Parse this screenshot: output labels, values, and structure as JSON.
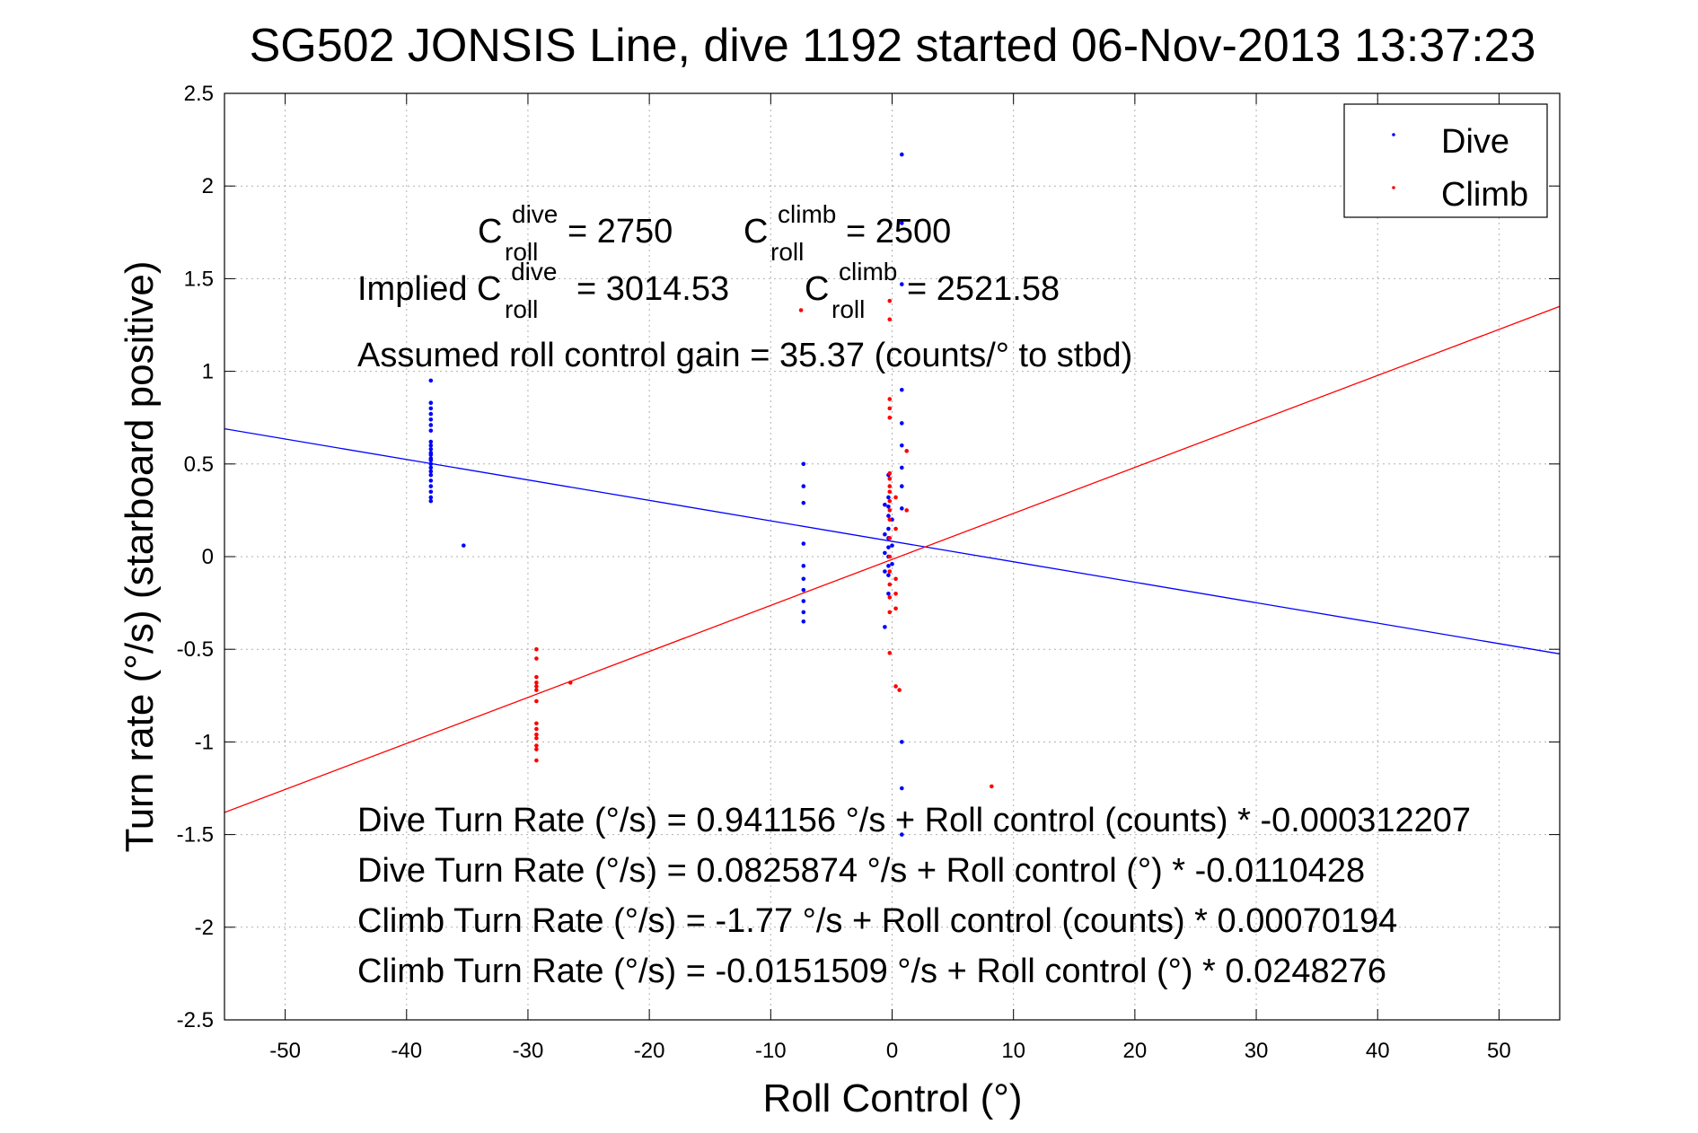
{
  "chart_data": {
    "type": "scatter",
    "title": "SG502 JONSIS Line, dive 1192 started 06-Nov-2013 13:37:23",
    "xlabel": "Roll Control (°)",
    "ylabel": "Turn rate (°/s) (starboard positive)",
    "xlim": [
      -55,
      55
    ],
    "ylim": [
      -2.5,
      2.5
    ],
    "xticks": [
      -50,
      -40,
      -30,
      -20,
      -10,
      0,
      10,
      20,
      30,
      40,
      50
    ],
    "yticks": [
      -2.5,
      -2,
      -1.5,
      -1,
      -0.5,
      0,
      0.5,
      1,
      1.5,
      2,
      2.5
    ],
    "xtick_labels": [
      "-50",
      "-40",
      "-30",
      "-20",
      "-10",
      "0",
      "10",
      "20",
      "30",
      "40",
      "50"
    ],
    "ytick_labels": [
      "-2.5",
      "-2",
      "-1.5",
      "-1",
      "-0.5",
      "0",
      "0.5",
      "1",
      "1.5",
      "2",
      "2.5"
    ],
    "grid": true,
    "legend_position": "top-right",
    "series": [
      {
        "name": "Dive",
        "color": "#0000ff",
        "points": [
          [
            -38,
            0.95
          ],
          [
            -38,
            0.83
          ],
          [
            -38,
            0.8
          ],
          [
            -38,
            0.77
          ],
          [
            -38,
            0.74
          ],
          [
            -38,
            0.71
          ],
          [
            -38,
            0.68
          ],
          [
            -38,
            0.62
          ],
          [
            -38,
            0.6
          ],
          [
            -38,
            0.58
          ],
          [
            -38,
            0.56
          ],
          [
            -38,
            0.55
          ],
          [
            -38,
            0.53
          ],
          [
            -38,
            0.52
          ],
          [
            -38,
            0.5
          ],
          [
            -38,
            0.48
          ],
          [
            -38,
            0.46
          ],
          [
            -38,
            0.44
          ],
          [
            -38,
            0.41
          ],
          [
            -38,
            0.38
          ],
          [
            -38,
            0.35
          ],
          [
            -38,
            0.32
          ],
          [
            -38,
            0.3
          ],
          [
            -35.3,
            0.06
          ],
          [
            -7.3,
            0.5
          ],
          [
            -7.3,
            0.38
          ],
          [
            -7.3,
            0.29
          ],
          [
            -7.3,
            0.07
          ],
          [
            -7.3,
            -0.05
          ],
          [
            -7.3,
            -0.12
          ],
          [
            -7.3,
            -0.18
          ],
          [
            -7.3,
            -0.24
          ],
          [
            -7.3,
            -0.3
          ],
          [
            -7.3,
            -0.35
          ],
          [
            -0.3,
            0.44
          ],
          [
            -0.3,
            0.32
          ],
          [
            -0.3,
            0.27
          ],
          [
            -0.3,
            0.22
          ],
          [
            -0.3,
            0.15
          ],
          [
            -0.3,
            0.1
          ],
          [
            -0.3,
            0.05
          ],
          [
            -0.3,
            0.0
          ],
          [
            -0.3,
            -0.05
          ],
          [
            -0.3,
            -0.1
          ],
          [
            -0.3,
            -0.2
          ],
          [
            -0.6,
            0.28
          ],
          [
            -0.6,
            0.12
          ],
          [
            -0.6,
            0.02
          ],
          [
            -0.6,
            -0.08
          ],
          [
            -0.6,
            -0.38
          ],
          [
            0.0,
            0.2
          ],
          [
            0.0,
            0.06
          ],
          [
            0.0,
            -0.04
          ],
          [
            0.8,
            2.17
          ],
          [
            0.8,
            1.8
          ],
          [
            0.8,
            1.47
          ],
          [
            0.8,
            0.9
          ],
          [
            0.8,
            0.72
          ],
          [
            0.8,
            0.6
          ],
          [
            0.8,
            0.48
          ],
          [
            0.8,
            0.38
          ],
          [
            0.8,
            0.26
          ],
          [
            0.8,
            -1.0
          ],
          [
            0.8,
            -1.25
          ],
          [
            0.8,
            -1.5
          ]
        ]
      },
      {
        "name": "Climb",
        "color": "#ff0000",
        "points": [
          [
            -29.3,
            -0.5
          ],
          [
            -29.3,
            -0.55
          ],
          [
            -29.3,
            -0.65
          ],
          [
            -29.3,
            -0.68
          ],
          [
            -29.3,
            -0.7
          ],
          [
            -29.3,
            -0.72
          ],
          [
            -29.3,
            -0.78
          ],
          [
            -29.3,
            -0.9
          ],
          [
            -29.3,
            -0.93
          ],
          [
            -29.3,
            -0.96
          ],
          [
            -29.3,
            -0.98
          ],
          [
            -29.3,
            -1.02
          ],
          [
            -29.3,
            -1.04
          ],
          [
            -29.3,
            -1.1
          ],
          [
            -26.5,
            -0.68
          ],
          [
            -7.5,
            1.33
          ],
          [
            -0.2,
            1.38
          ],
          [
            -0.2,
            1.28
          ],
          [
            -0.2,
            0.85
          ],
          [
            -0.2,
            0.8
          ],
          [
            -0.2,
            0.75
          ],
          [
            -0.2,
            0.45
          ],
          [
            -0.2,
            0.42
          ],
          [
            -0.2,
            0.38
          ],
          [
            -0.2,
            0.35
          ],
          [
            -0.2,
            0.3
          ],
          [
            -0.2,
            0.25
          ],
          [
            -0.2,
            0.2
          ],
          [
            -0.2,
            0.1
          ],
          [
            -0.2,
            0.0
          ],
          [
            -0.2,
            -0.08
          ],
          [
            -0.2,
            -0.15
          ],
          [
            -0.2,
            -0.22
          ],
          [
            -0.2,
            -0.3
          ],
          [
            -0.2,
            -0.52
          ],
          [
            0.3,
            0.32
          ],
          [
            0.3,
            0.15
          ],
          [
            0.3,
            -0.12
          ],
          [
            0.3,
            -0.2
          ],
          [
            0.3,
            -0.28
          ],
          [
            0.3,
            -0.7
          ],
          [
            0.6,
            -0.72
          ],
          [
            1.2,
            0.57
          ],
          [
            1.2,
            0.25
          ],
          [
            8.2,
            -1.24
          ]
        ]
      }
    ],
    "fit_lines": [
      {
        "series": "Dive",
        "color": "#0000ff",
        "intercept": 0.0825874,
        "slope": -0.0110428
      },
      {
        "series": "Climb",
        "color": "#ff0000",
        "intercept": -0.0151509,
        "slope": 0.0248276
      }
    ],
    "annotations": {
      "c_roll_dive": {
        "C": "C",
        "sup": "dive",
        "sub": "roll",
        "value": "= 2750"
      },
      "c_roll_climb": {
        "C": "C",
        "sup": "climb",
        "sub": "roll",
        "value": "= 2500"
      },
      "implied_dive": {
        "prefix": "Implied C",
        "sup": "dive",
        "sub": "roll",
        "value": "= 3014.53"
      },
      "implied_climb": {
        "C": "C",
        "sup": "climb",
        "sub": "roll",
        "value": "= 2521.58"
      },
      "gain": "Assumed roll control gain = 35.37 (counts/° to stbd)",
      "eq_dive_counts": "Dive Turn Rate (°/s) = 0.941156 °/s + Roll control (counts) * -0.000312207",
      "eq_dive_deg": "Dive Turn Rate (°/s) = 0.0825874 °/s + Roll control (°) * -0.0110428",
      "eq_climb_counts": "Climb Turn Rate (°/s) = -1.77 °/s + Roll control (counts) * 0.00070194",
      "eq_climb_deg": "Climb Turn Rate (°/s) = -0.0151509 °/s + Roll control (°) * 0.0248276"
    }
  }
}
